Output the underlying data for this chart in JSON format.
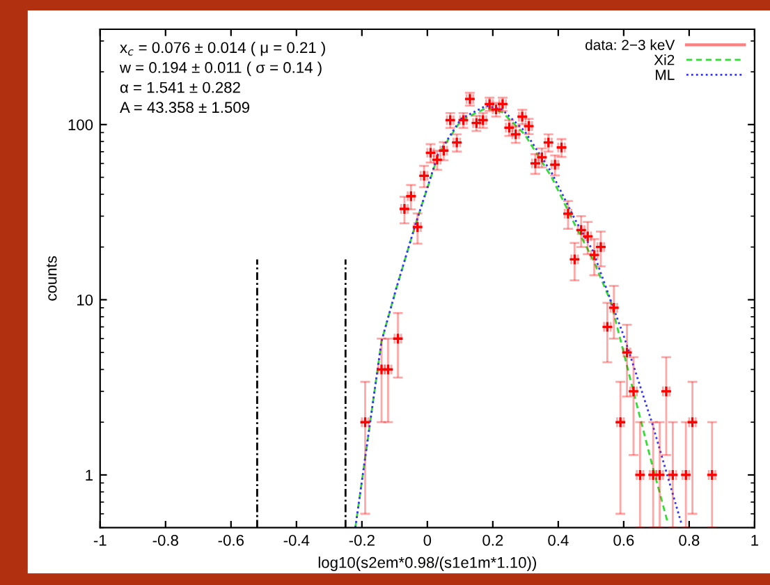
{
  "chart_data": {
    "type": "scatter",
    "xlabel": "log10(s2em*0.98/(s1e1m*1.10))",
    "ylabel": "counts",
    "annotations": [
      "x$_{c}$ = 0.076 ± 0.014 ( μ = 0.21 )",
      "w = 0.194 ± 0.011 ( σ = 0.14 )",
      "α = 1.541 ± 0.282",
      "A = 43.358 ± 1.509"
    ],
    "xlim": [
      -1,
      1
    ],
    "xticks": [
      -1,
      -0.8,
      -0.6,
      -0.4,
      -0.2,
      0,
      0.2,
      0.4,
      0.6,
      0.8,
      1
    ],
    "ylim": [
      0.5,
      350
    ],
    "yticks": [
      1,
      10,
      100
    ],
    "log": "y",
    "grid": false,
    "legend": "top right",
    "series": [
      {
        "name": "data: 2−3 keV",
        "color": "#ff0000",
        "marker": "cross",
        "x": [
          -0.19,
          -0.14,
          -0.12,
          -0.09,
          -0.07,
          -0.05,
          -0.03,
          -0.01,
          0.01,
          0.03,
          0.05,
          0.07,
          0.09,
          0.11,
          0.13,
          0.15,
          0.17,
          0.19,
          0.21,
          0.23,
          0.25,
          0.27,
          0.29,
          0.31,
          0.33,
          0.35,
          0.37,
          0.39,
          0.41,
          0.43,
          0.45,
          0.47,
          0.49,
          0.51,
          0.53,
          0.55,
          0.57,
          0.59,
          0.61,
          0.63,
          0.65,
          0.69,
          0.71,
          0.73,
          0.75,
          0.79,
          0.81,
          0.87
        ],
        "values": [
          2,
          4,
          4,
          6,
          33,
          39,
          26,
          51,
          69,
          63,
          71,
          106,
          79,
          106,
          140,
          102,
          106,
          131,
          122,
          131,
          96,
          88,
          111,
          98,
          60,
          65,
          79,
          59,
          74,
          31,
          17,
          25,
          23,
          18,
          20,
          7,
          9,
          2,
          5,
          3,
          1,
          1,
          1,
          3,
          1,
          1,
          2,
          1
        ],
        "errors": [
          1.4,
          2,
          2,
          2.4,
          5.7,
          6.2,
          5.1,
          7.1,
          8.3,
          7.9,
          8.4,
          10.3,
          8.9,
          10.3,
          11.8,
          10.1,
          10.3,
          11.4,
          11,
          11.4,
          9.8,
          9.4,
          10.5,
          9.9,
          7.7,
          8.1,
          8.9,
          7.7,
          8.6,
          5.6,
          4.1,
          5,
          4.8,
          4.2,
          4.5,
          2.6,
          3,
          1.4,
          2.2,
          1.7,
          [
            0.5,
            2
          ],
          [
            0.5,
            2
          ],
          [
            0.5,
            2
          ],
          1.7,
          [
            0.5,
            2
          ],
          [
            0.5,
            2
          ],
          1.4,
          [
            0.5,
            2
          ]
        ],
        "xerrors": [
          0.01,
          0.01,
          0.01,
          0.01,
          0.01,
          0.01,
          0.01,
          0.01,
          0.01,
          0.01,
          0.01,
          0.01,
          0.01,
          0.01,
          0.01,
          0.01,
          0.01,
          0.01,
          0.01,
          0.01,
          0.01,
          0.01,
          0.01,
          0.01,
          0.01,
          0.01,
          0.01,
          0.01,
          0.01,
          0.01,
          0.01,
          0.01,
          0.01,
          0.01,
          0.01,
          0.01,
          0.01,
          0.01,
          0.01,
          0.01,
          0.01,
          0.01,
          0.01,
          0.01,
          0.01,
          0.01,
          0.01,
          0.01
        ]
      },
      {
        "name": "Xi2",
        "type": "line",
        "color": "#33dd33",
        "line_style": "dashed",
        "x": [
          -0.22,
          -0.14,
          -0.095,
          -0.036,
          0.033,
          0.103,
          0.179,
          0.228,
          0.297,
          0.38,
          0.45,
          0.506,
          0.561,
          0.624,
          0.686,
          0.735
        ],
        "values": [
          0.5,
          5.8,
          11.6,
          27,
          67,
          106,
          124,
          118,
          88,
          50,
          27,
          17,
          9.7,
          3.3,
          1.16,
          0.53
        ]
      },
      {
        "name": "ML",
        "type": "line",
        "color": "#3333ff",
        "line_style": "dotted",
        "x": [
          -0.22,
          -0.14,
          -0.095,
          -0.036,
          0.033,
          0.103,
          0.179,
          0.228,
          0.297,
          0.38,
          0.45,
          0.506,
          0.547,
          0.603,
          0.686,
          0.776
        ],
        "values": [
          0.5,
          5.8,
          11.6,
          27,
          68,
          108,
          128,
          122,
          92,
          53,
          29,
          19,
          11.6,
          6,
          2,
          0.53
        ]
      },
      {
        "type": "line",
        "color": "#000000",
        "line_style": "dashdot",
        "x": [
          -0.52,
          -0.52
        ],
        "values": [
          0.5,
          17
        ]
      },
      {
        "type": "line",
        "color": "#000000",
        "line_style": "dashdot",
        "x": [
          -0.25,
          -0.25
        ],
        "values": [
          0.5,
          17
        ]
      }
    ]
  }
}
